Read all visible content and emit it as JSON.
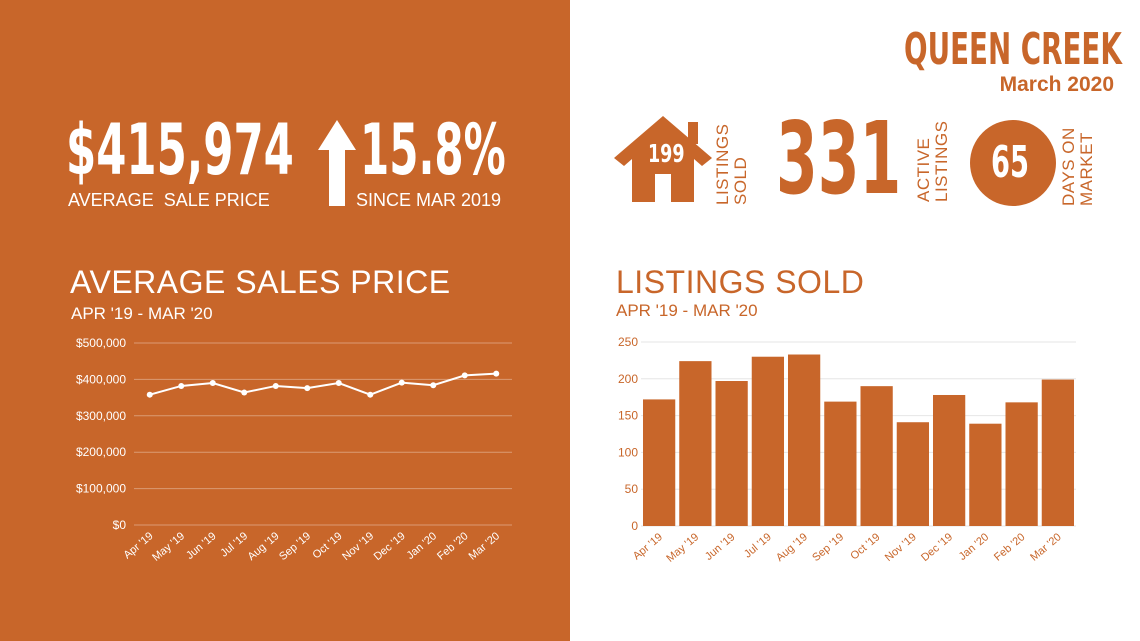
{
  "colors": {
    "accent": "#c8662a",
    "white": "#ffffff"
  },
  "header": {
    "city": "QUEEN CREEK",
    "period": "March 2020"
  },
  "stats": {
    "avg_price_value": "$415,974",
    "avg_price_label": "AVERAGE  SALE PRICE",
    "change_value": "15.8%",
    "change_label": "SINCE MAR 2019",
    "change_icon": "up-arrow-icon",
    "listings_sold_value": "199",
    "listings_sold_label_1": "LISTINGS",
    "listings_sold_label_2": "SOLD",
    "listings_sold_icon": "house-icon",
    "active_value": "331",
    "active_label_1": "ACTIVE",
    "active_label_2": "LISTINGS",
    "days_value": "65",
    "days_label_1": "DAYS ON",
    "days_label_2": "MARKET"
  },
  "chart_data": [
    {
      "type": "line",
      "title": "AVERAGE SALES PRICE",
      "subtitle": "APR '19 - MAR '20",
      "categories": [
        "Apr '19",
        "May '19",
        "Jun '19",
        "Jul '19",
        "Aug '19",
        "Sep '19",
        "Oct '19",
        "Nov '19",
        "Dec '19",
        "Jan '20",
        "Feb '20",
        "Mar '20"
      ],
      "values": [
        358000,
        382000,
        390000,
        364000,
        382000,
        376000,
        390000,
        358000,
        391000,
        384000,
        411000,
        415974
      ],
      "ylim": [
        0,
        500000
      ],
      "yticks": [
        "$0",
        "$100,000",
        "$200,000",
        "$300,000",
        "$400,000",
        "$500,000"
      ],
      "grid": true,
      "color": "#ffffff"
    },
    {
      "type": "bar",
      "title": "LISTINGS SOLD",
      "subtitle": "APR '19 - MAR '20",
      "categories": [
        "Apr '19",
        "May '19",
        "Jun '19",
        "Jul '19",
        "Aug '19",
        "Sep '19",
        "Oct '19",
        "Nov '19",
        "Dec '19",
        "Jan '20",
        "Feb '20",
        "Mar '20"
      ],
      "values": [
        172,
        224,
        197,
        230,
        233,
        169,
        190,
        141,
        178,
        139,
        168,
        199
      ],
      "ylim": [
        0,
        250
      ],
      "yticks": [
        "0",
        "50",
        "100",
        "150",
        "200",
        "250"
      ],
      "grid": true,
      "color": "#c8662a"
    }
  ]
}
